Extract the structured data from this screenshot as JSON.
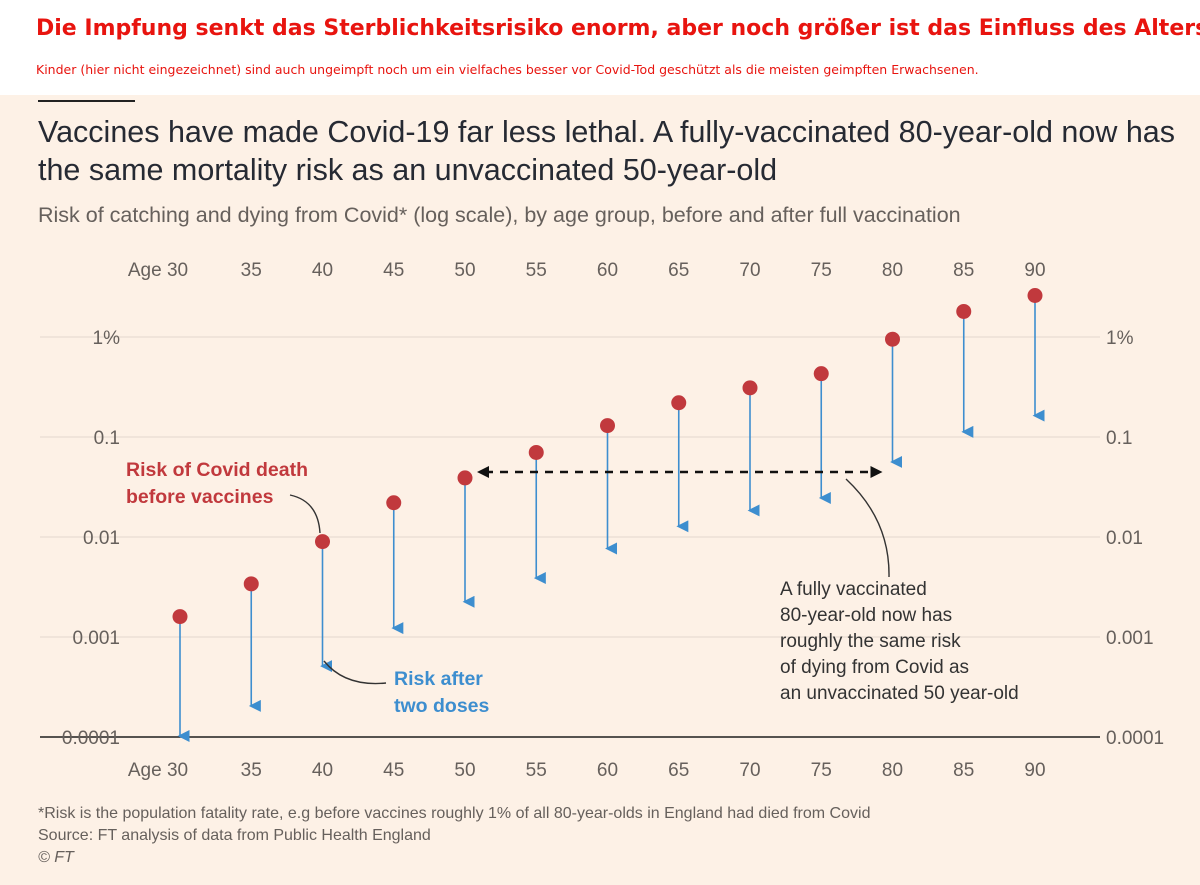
{
  "banner": {
    "title": "Die Impfung senkt das Sterblichkeitsrisiko enorm, aber noch größer ist das Einfluss des Alters.",
    "subtitle": "Kinder (hier nicht eingezeichnet) sind auch ungeimpft noch um ein vielfaches besser vor Covid-Tod geschützt als die meisten geimpften Erwachsenen."
  },
  "chart_data": {
    "type": "scatter",
    "title": "Vaccines have made Covid-19 far less lethal. A fully-vaccinated 80-year-old now has the same mortality risk as an unvaccinated 50-year-old",
    "subtitle": "Risk of catching and dying from Covid* (log scale), by age group, before and after full vaccination",
    "x_tick_labels": [
      "Age 30",
      "35",
      "40",
      "45",
      "50",
      "55",
      "60",
      "65",
      "70",
      "75",
      "80",
      "85",
      "90"
    ],
    "x": [
      30,
      35,
      40,
      45,
      50,
      55,
      60,
      65,
      70,
      75,
      80,
      85,
      90
    ],
    "y_scale": "log",
    "ylim": [
      0.0001,
      3
    ],
    "y_ticks": [
      {
        "value": 0.0001,
        "label": "0.0001"
      },
      {
        "value": 0.001,
        "label": "0.001"
      },
      {
        "value": 0.01,
        "label": "0.01"
      },
      {
        "value": 0.1,
        "label": "0.1"
      },
      {
        "value": 1,
        "label": "1%"
      }
    ],
    "series": [
      {
        "name": "Risk of Covid death before vaccines",
        "color": "#c1393d",
        "values": [
          0.0016,
          0.0034,
          0.009,
          0.022,
          0.039,
          0.07,
          0.13,
          0.22,
          0.31,
          0.43,
          0.95,
          1.8,
          2.6
        ]
      },
      {
        "name": "Risk after two doses",
        "color": "#3d8ecf",
        "values": [
          0.0001,
          0.0002,
          0.0005,
          0.0012,
          0.0022,
          0.0038,
          0.0075,
          0.0125,
          0.018,
          0.024,
          0.055,
          0.11,
          0.16
        ]
      }
    ],
    "annotations": {
      "before_label": [
        "Risk of Covid death",
        "before vaccines"
      ],
      "after_label": [
        "Risk after",
        "two doses"
      ],
      "comparison_label": [
        "A fully vaccinated",
        "80-year-old now has",
        "roughly the same risk",
        "of dying from Covid as",
        "an unvaccinated 50 year-old"
      ]
    },
    "grid": true,
    "colors": {
      "background": "#fdf1e6",
      "grid": "#e3d8ce",
      "text": "#66605c",
      "title": "#262a33",
      "before": "#c1393d",
      "after": "#3d8ecf"
    }
  },
  "footer": {
    "note": "*Risk is the population fatality rate, e.g before vaccines roughly 1% of all 80-year-olds in England had died from Covid",
    "source": "Source: FT analysis of data from Public Health England",
    "copyright": "© FT"
  }
}
